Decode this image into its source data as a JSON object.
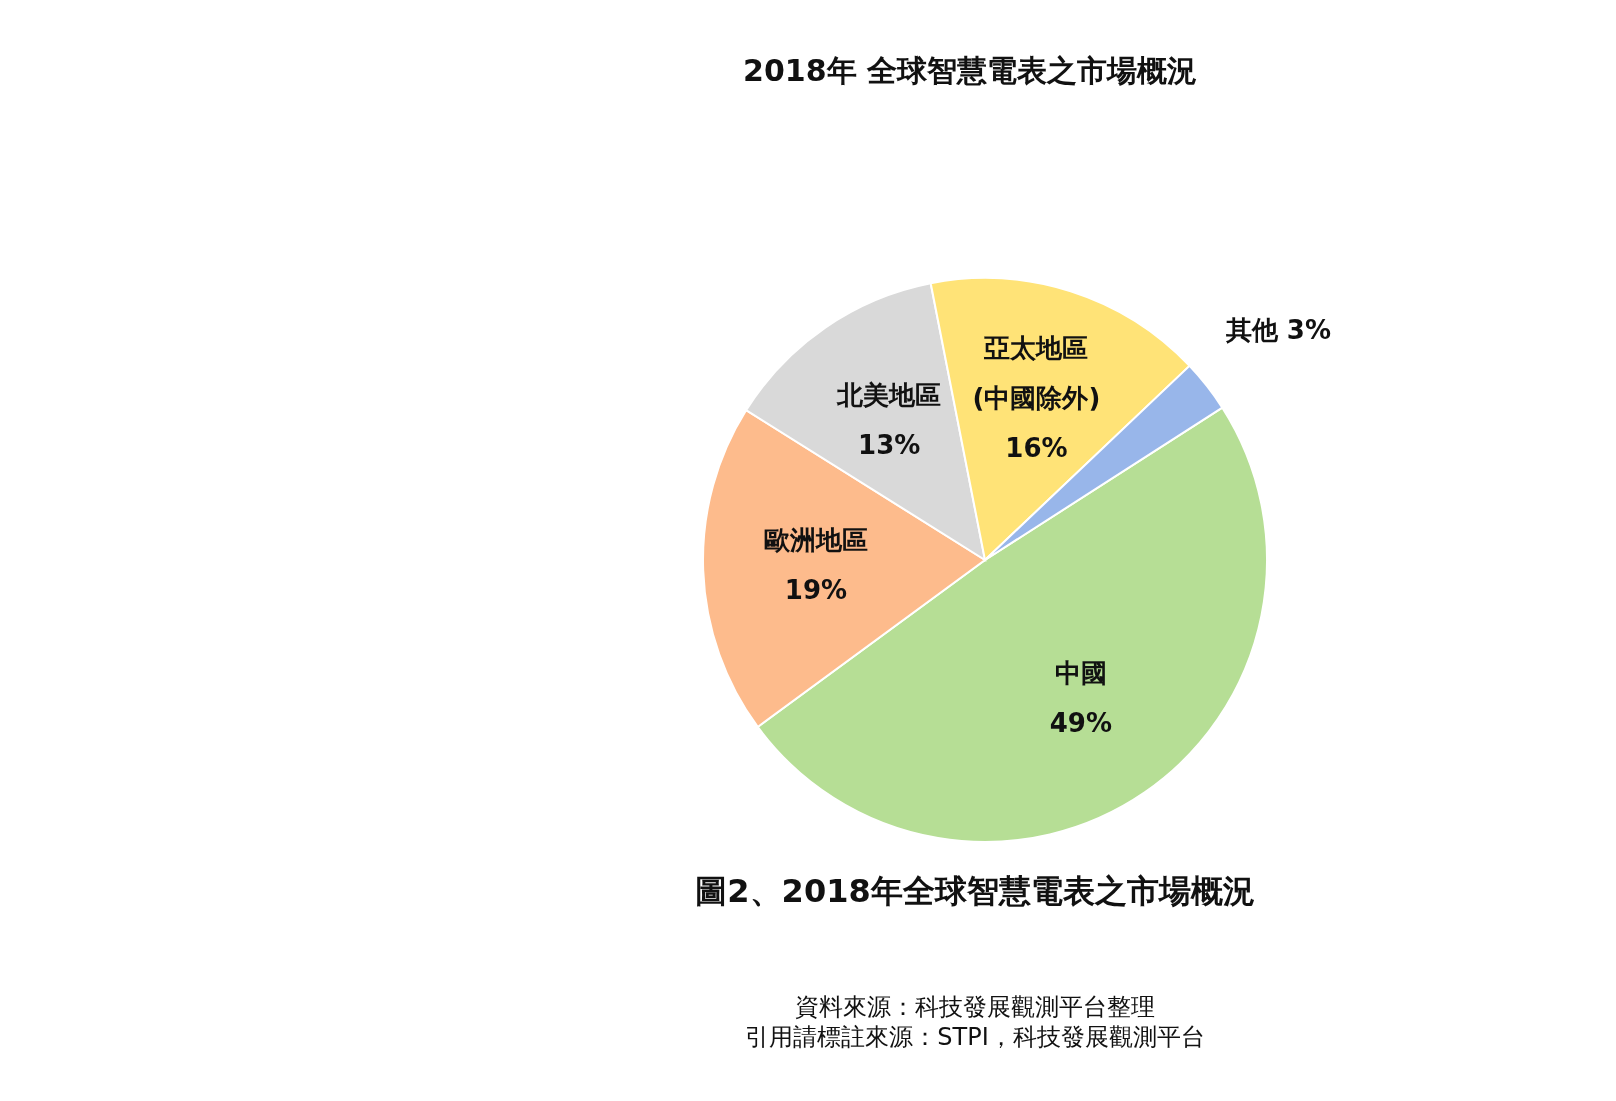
{
  "chart_data": {
    "type": "pie",
    "title": "2018年 全球智慧電表之市場概況",
    "categories": [
      "中國",
      "歐洲地區",
      "北美地區",
      "亞太地區\n(中國除外)",
      "其他"
    ],
    "values": [
      49,
      19,
      13,
      16,
      3
    ],
    "value_labels": [
      "49%",
      "19%",
      "13%",
      "16%",
      "3%"
    ],
    "colors": [
      "#b6de95",
      "#fdbb8c",
      "#d9d9d9",
      "#ffe377",
      "#98b6ea"
    ],
    "annotations": [
      "圖2、2018年全球智慧電表之市場概況",
      "資料來源：科技發展觀測平台整理",
      "引用請標註來源：STPI，科技發展觀測平台"
    ]
  }
}
